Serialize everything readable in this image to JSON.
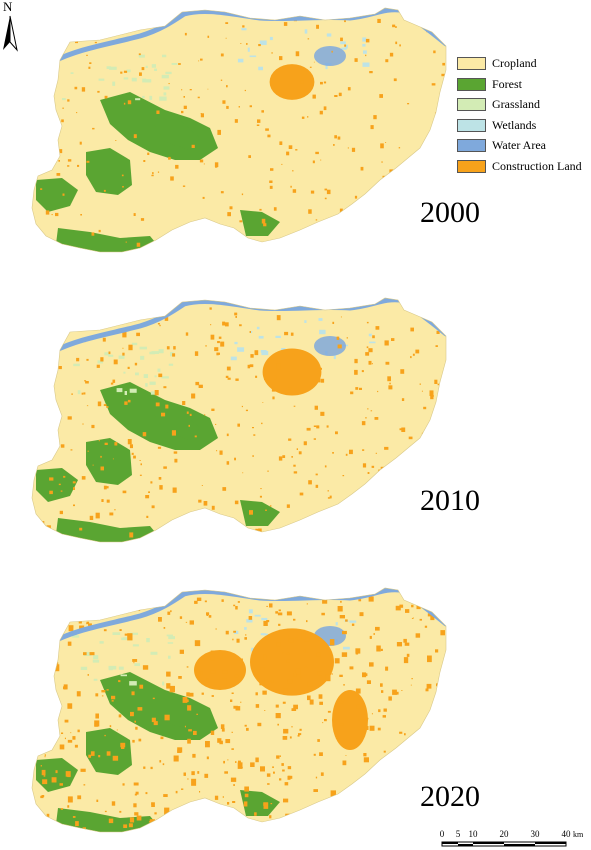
{
  "legend": {
    "items": [
      {
        "label": "Cropland",
        "color": "#fbeaa6"
      },
      {
        "label": "Forest",
        "color": "#5aa532"
      },
      {
        "label": "Grassland",
        "color": "#d3ecb5"
      },
      {
        "label": "Wetlands",
        "color": "#bde3e6"
      },
      {
        "label": "Water Area",
        "color": "#7fa9dc"
      },
      {
        "label": "Construction Land",
        "color": "#f7a21b"
      }
    ]
  },
  "maps": [
    {
      "year": "2000",
      "construction_share": 0.12
    },
    {
      "year": "2010",
      "construction_share": 0.22
    },
    {
      "year": "2020",
      "construction_share": 0.4
    }
  ],
  "north_arrow": {
    "label": "N"
  },
  "scale_bar": {
    "ticks": [
      "0",
      "5",
      "10",
      "20",
      "30",
      "40"
    ],
    "tick_values": [
      0,
      5,
      10,
      20,
      30,
      40
    ],
    "unit": "km"
  }
}
